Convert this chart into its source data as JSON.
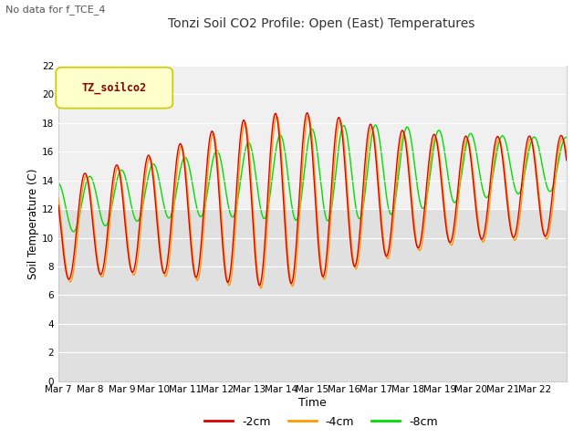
{
  "title": "Tonzi Soil CO2 Profile: Open (East) Temperatures",
  "subtitle": "No data for f_TCE_4",
  "ylabel": "Soil Temperature (C)",
  "xlabel": "Time",
  "legend_label": "TZ_soilco2",
  "ylim": [
    0,
    22
  ],
  "yticks": [
    0,
    2,
    4,
    6,
    8,
    10,
    12,
    14,
    16,
    18,
    20,
    22
  ],
  "x_tick_labels": [
    "Mar 7",
    "Mar 8",
    "Mar 9",
    "Mar 10",
    "Mar 11",
    "Mar 12",
    "Mar 13",
    "Mar 14",
    "Mar 15",
    "Mar 16",
    "Mar 17",
    "Mar 18",
    "Mar 19",
    "Mar 20",
    "Mar 21",
    "Mar 22"
  ],
  "line_2cm_color": "#dd0000",
  "line_4cm_color": "#ff9900",
  "line_8cm_color": "#00dd00",
  "line_width": 1.0,
  "fig_bg_color": "#ffffff",
  "plot_bg_color": "#f0f0f0",
  "legend_box_facecolor": "#ffffcc",
  "legend_box_edgecolor": "#cccc00",
  "legend_text_color": "#880000",
  "legend_entries": [
    "-2cm",
    "-4cm",
    "-8cm"
  ],
  "legend_colors": [
    "#dd0000",
    "#ff9900",
    "#00dd00"
  ],
  "grid_color": "#ffffff",
  "grid_band_color": "#e0e0e0",
  "spine_color": "#cccccc"
}
